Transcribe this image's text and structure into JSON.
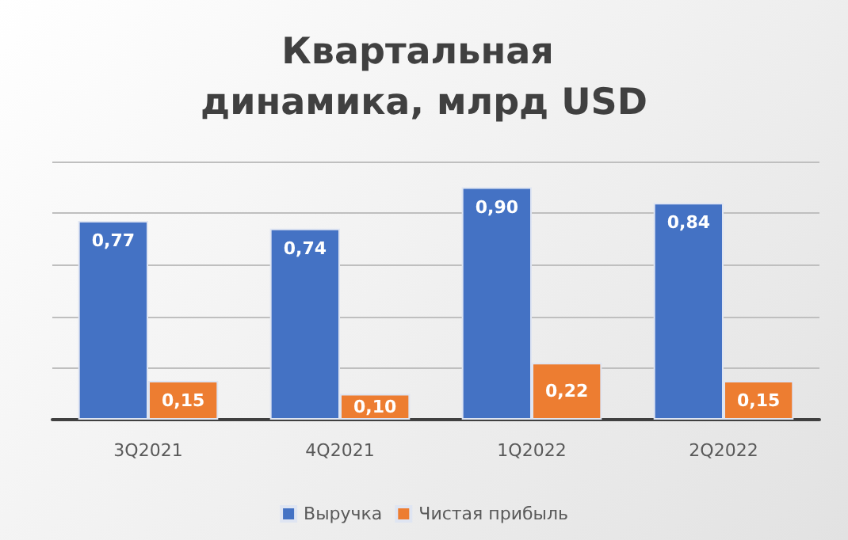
{
  "chart_data": {
    "type": "bar",
    "title": "Квартальная динамика, млрд USD",
    "categories": [
      "3Q2021",
      "4Q2021",
      "1Q2022",
      "2Q2022"
    ],
    "series": [
      {
        "name": "Выручка",
        "color": "#4472c4",
        "values": [
          0.77,
          0.74,
          0.9,
          0.84
        ],
        "value_labels": [
          "0,77",
          "0,74",
          "0,90",
          "0,84"
        ]
      },
      {
        "name": "Чистая прибыль",
        "color": "#ed7d31",
        "values": [
          0.15,
          0.1,
          0.22,
          0.15
        ],
        "value_labels": [
          "0,15",
          "0,10",
          "0,22",
          "0,15"
        ]
      }
    ],
    "ylim": [
      0,
      1
    ],
    "yticks": [
      {
        "value": 0,
        "label": null
      },
      {
        "value": 0.2,
        "label": null
      },
      {
        "value": 0.4,
        "label": null
      },
      {
        "value": 0.6,
        "label": null
      },
      {
        "value": 0.8,
        "label": null
      },
      {
        "value": 1,
        "label": null
      }
    ],
    "tick_labels": "x",
    "grid": "y",
    "legend": "bottom"
  }
}
